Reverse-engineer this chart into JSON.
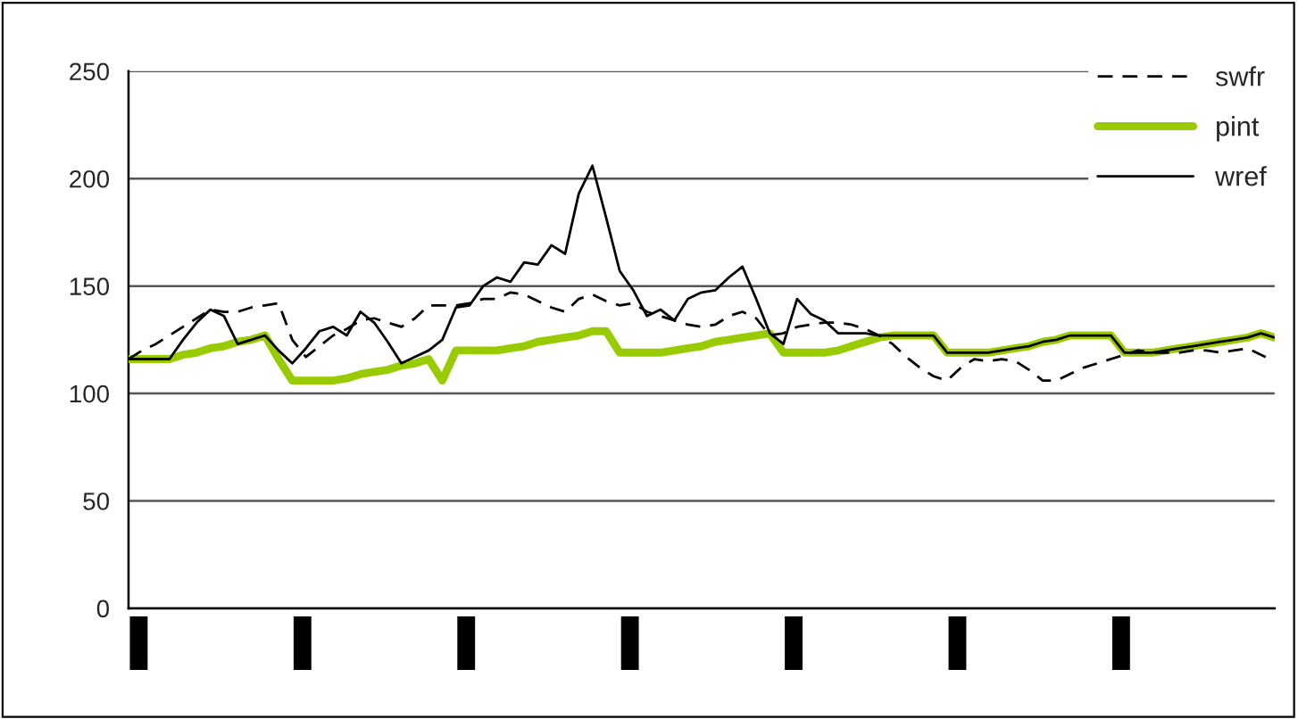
{
  "chart_data": {
    "type": "line",
    "categories": [
      null,
      null,
      null,
      null,
      null,
      null,
      null,
      null,
      null,
      null,
      null,
      null,
      null,
      null,
      null,
      null,
      null,
      null,
      null,
      null,
      null,
      null,
      null,
      null,
      null,
      null,
      null,
      null,
      null,
      null,
      null,
      null,
      null,
      null,
      null,
      null,
      null,
      null,
      null,
      null,
      null,
      null,
      null,
      null,
      null,
      null,
      null,
      null,
      null,
      null,
      null,
      null,
      null,
      null,
      null,
      null,
      null,
      null,
      null,
      null,
      null,
      null,
      null,
      null,
      null,
      null,
      null,
      null,
      null,
      null,
      null,
      null,
      null,
      null,
      null,
      null,
      null,
      null,
      null,
      null,
      null,
      null,
      null,
      null,
      null
    ],
    "series": [
      {
        "name": "swfr",
        "color": "#000000",
        "line_style": "dashed",
        "values": [
          116,
          120,
          123,
          127,
          131,
          135,
          139,
          138,
          138,
          140,
          141,
          142,
          125,
          117,
          122,
          127,
          130,
          134,
          135,
          133,
          131,
          135,
          141,
          141,
          141,
          142,
          144,
          144,
          147,
          146,
          143,
          140,
          138,
          144,
          146,
          143,
          141,
          142,
          138,
          136,
          134,
          132,
          131,
          132,
          136,
          138,
          135,
          127,
          128,
          131,
          132,
          133,
          133,
          132,
          130,
          127,
          123,
          117,
          112,
          108,
          106,
          112,
          116,
          115,
          116,
          115,
          111,
          106,
          106,
          109,
          112,
          114,
          116,
          118,
          120,
          119,
          119,
          119,
          120,
          120,
          119,
          120,
          121,
          118,
          115
        ]
      },
      {
        "name": "pint",
        "color": "#99cc00",
        "line_style": "solid",
        "values": [
          116,
          116,
          116,
          116,
          118,
          119,
          121,
          122,
          124,
          125,
          127,
          116,
          106,
          106,
          106,
          106,
          107,
          109,
          110,
          111,
          113,
          114,
          116,
          106,
          120,
          120,
          120,
          120,
          121,
          122,
          124,
          125,
          126,
          127,
          129,
          129,
          119,
          119,
          119,
          119,
          120,
          121,
          122,
          124,
          125,
          126,
          127,
          128,
          119,
          119,
          119,
          119,
          120,
          122,
          124,
          126,
          127,
          127,
          127,
          127,
          119,
          119,
          119,
          119,
          120,
          121,
          122,
          124,
          125,
          127,
          127,
          127,
          127,
          119,
          119,
          119,
          120,
          121,
          122,
          123,
          124,
          125,
          126,
          128,
          126
        ]
      },
      {
        "name": "wref",
        "color": "#000000",
        "line_style": "solid",
        "values": [
          116,
          116,
          116,
          116,
          125,
          133,
          139,
          136,
          123,
          125,
          127,
          120,
          114,
          121,
          129,
          131,
          127,
          138,
          133,
          124,
          114,
          117,
          120,
          125,
          140,
          141,
          150,
          154,
          152,
          161,
          160,
          169,
          165,
          193,
          206,
          182,
          157,
          148,
          136,
          139,
          134,
          144,
          147,
          148,
          154,
          159,
          144,
          128,
          123,
          144,
          137,
          134,
          128,
          128,
          128,
          127,
          127,
          127,
          127,
          127,
          119,
          119,
          119,
          119,
          120,
          121,
          122,
          124,
          125,
          127,
          127,
          127,
          127,
          119,
          119,
          119,
          120,
          121,
          122,
          123,
          124,
          125,
          126,
          128,
          126
        ]
      }
    ],
    "ylim": [
      0,
      250
    ],
    "yticks": [
      0,
      50,
      100,
      150,
      200,
      250
    ],
    "grid": "y",
    "legend": "top right"
  }
}
